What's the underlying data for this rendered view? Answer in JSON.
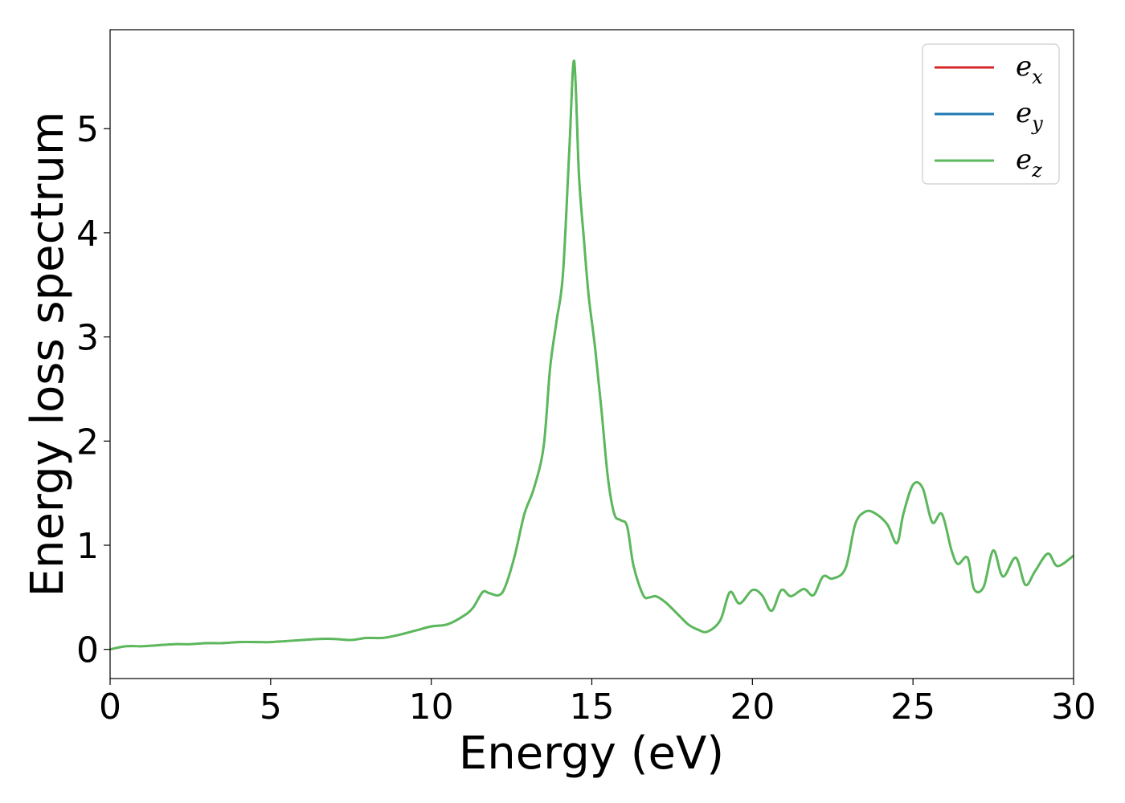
{
  "chart_data": {
    "type": "line",
    "title": "",
    "xlabel": "Energy (eV)",
    "ylabel": "Energy loss spectrum",
    "xlim": [
      0,
      30
    ],
    "ylim": [
      -0.28,
      5.95
    ],
    "xticks": [
      0,
      5,
      10,
      15,
      20,
      25,
      30
    ],
    "yticks": [
      0,
      1,
      2,
      3,
      4,
      5
    ],
    "grid": false,
    "legend_position": "top-right",
    "series": [
      {
        "name": "e_x",
        "legend_base": "e",
        "legend_sub": "x",
        "color": "#d62728",
        "x": [
          0,
          0.5,
          1,
          1.5,
          2,
          2.5,
          3,
          3.5,
          4,
          4.5,
          5,
          5.5,
          6,
          6.5,
          7,
          7.5,
          8,
          8.5,
          9,
          9.5,
          10,
          10.5,
          11,
          11.3,
          11.6,
          11.8,
          12.1,
          12.3,
          12.6,
          12.9,
          13.2,
          13.5,
          13.7,
          13.9,
          14.1,
          14.3,
          14.45,
          14.6,
          14.75,
          14.9,
          15.1,
          15.3,
          15.5,
          15.7,
          15.9,
          16.1,
          16.3,
          16.6,
          16.8,
          17.0,
          17.3,
          17.7,
          18.0,
          18.3,
          18.6,
          19.0,
          19.3,
          19.6,
          20.0,
          20.3,
          20.6,
          20.9,
          21.2,
          21.6,
          21.9,
          22.2,
          22.5,
          22.9,
          23.2,
          23.5,
          23.8,
          24.2,
          24.5,
          24.7,
          25.0,
          25.3,
          25.6,
          25.9,
          26.2,
          26.4,
          26.7,
          26.9,
          27.2,
          27.5,
          27.8,
          28.2,
          28.5,
          28.8,
          29.2,
          29.5,
          30.0
        ],
        "values": [
          0,
          0.03,
          0.03,
          0.04,
          0.05,
          0.05,
          0.06,
          0.06,
          0.07,
          0.07,
          0.07,
          0.08,
          0.09,
          0.1,
          0.1,
          0.09,
          0.11,
          0.11,
          0.14,
          0.18,
          0.22,
          0.24,
          0.32,
          0.4,
          0.55,
          0.54,
          0.52,
          0.6,
          0.9,
          1.3,
          1.55,
          1.95,
          2.7,
          3.15,
          3.6,
          4.8,
          5.65,
          4.55,
          3.95,
          3.4,
          2.9,
          2.3,
          1.65,
          1.3,
          1.24,
          1.18,
          0.8,
          0.52,
          0.5,
          0.51,
          0.45,
          0.33,
          0.24,
          0.19,
          0.17,
          0.28,
          0.55,
          0.44,
          0.57,
          0.52,
          0.37,
          0.57,
          0.51,
          0.58,
          0.52,
          0.7,
          0.68,
          0.78,
          1.2,
          1.32,
          1.31,
          1.2,
          1.02,
          1.3,
          1.58,
          1.55,
          1.22,
          1.3,
          0.95,
          0.82,
          0.88,
          0.58,
          0.6,
          0.95,
          0.7,
          0.88,
          0.62,
          0.75,
          0.92,
          0.8,
          0.9
        ],
        "width": 2.5
      },
      {
        "name": "e_y",
        "legend_base": "e",
        "legend_sub": "y",
        "color": "#1f77b4",
        "x": [
          0,
          0.5,
          1,
          1.5,
          2,
          2.5,
          3,
          3.5,
          4,
          4.5,
          5,
          5.5,
          6,
          6.5,
          7,
          7.5,
          8,
          8.5,
          9,
          9.5,
          10,
          10.5,
          11,
          11.3,
          11.6,
          11.8,
          12.1,
          12.3,
          12.6,
          12.9,
          13.2,
          13.5,
          13.7,
          13.9,
          14.1,
          14.3,
          14.45,
          14.6,
          14.75,
          14.9,
          15.1,
          15.3,
          15.5,
          15.7,
          15.9,
          16.1,
          16.3,
          16.6,
          16.8,
          17.0,
          17.3,
          17.7,
          18.0,
          18.3,
          18.6,
          19.0,
          19.3,
          19.6,
          20.0,
          20.3,
          20.6,
          20.9,
          21.2,
          21.6,
          21.9,
          22.2,
          22.5,
          22.9,
          23.2,
          23.5,
          23.8,
          24.2,
          24.5,
          24.7,
          25.0,
          25.3,
          25.6,
          25.9,
          26.2,
          26.4,
          26.7,
          26.9,
          27.2,
          27.5,
          27.8,
          28.2,
          28.5,
          28.8,
          29.2,
          29.5,
          30.0
        ],
        "values": [
          0,
          0.03,
          0.03,
          0.04,
          0.05,
          0.05,
          0.06,
          0.06,
          0.07,
          0.07,
          0.07,
          0.08,
          0.09,
          0.1,
          0.1,
          0.09,
          0.11,
          0.11,
          0.14,
          0.18,
          0.22,
          0.24,
          0.32,
          0.4,
          0.55,
          0.54,
          0.52,
          0.6,
          0.9,
          1.3,
          1.55,
          1.95,
          2.7,
          3.15,
          3.6,
          4.8,
          5.65,
          4.55,
          3.95,
          3.4,
          2.9,
          2.3,
          1.65,
          1.3,
          1.24,
          1.18,
          0.8,
          0.52,
          0.5,
          0.51,
          0.45,
          0.33,
          0.24,
          0.19,
          0.17,
          0.28,
          0.55,
          0.44,
          0.57,
          0.52,
          0.37,
          0.57,
          0.51,
          0.58,
          0.52,
          0.7,
          0.68,
          0.78,
          1.2,
          1.32,
          1.31,
          1.2,
          1.02,
          1.3,
          1.58,
          1.55,
          1.22,
          1.3,
          0.95,
          0.82,
          0.88,
          0.58,
          0.6,
          0.95,
          0.7,
          0.88,
          0.62,
          0.75,
          0.92,
          0.8,
          0.9
        ],
        "width": 2.5
      },
      {
        "name": "e_z",
        "legend_base": "e",
        "legend_sub": "z",
        "color": "#5cb85c",
        "x": [
          0,
          0.5,
          1,
          1.5,
          2,
          2.5,
          3,
          3.5,
          4,
          4.5,
          5,
          5.5,
          6,
          6.5,
          7,
          7.5,
          8,
          8.5,
          9,
          9.5,
          10,
          10.5,
          11,
          11.3,
          11.6,
          11.8,
          12.1,
          12.3,
          12.6,
          12.9,
          13.2,
          13.5,
          13.7,
          13.9,
          14.1,
          14.3,
          14.45,
          14.6,
          14.75,
          14.9,
          15.1,
          15.3,
          15.5,
          15.7,
          15.9,
          16.1,
          16.3,
          16.6,
          16.8,
          17.0,
          17.3,
          17.7,
          18.0,
          18.3,
          18.6,
          19.0,
          19.3,
          19.6,
          20.0,
          20.3,
          20.6,
          20.9,
          21.2,
          21.6,
          21.9,
          22.2,
          22.5,
          22.9,
          23.2,
          23.5,
          23.8,
          24.2,
          24.5,
          24.7,
          25.0,
          25.3,
          25.6,
          25.9,
          26.2,
          26.4,
          26.7,
          26.9,
          27.2,
          27.5,
          27.8,
          28.2,
          28.5,
          28.8,
          29.2,
          29.5,
          30.0
        ],
        "values": [
          0,
          0.03,
          0.03,
          0.04,
          0.05,
          0.05,
          0.06,
          0.06,
          0.07,
          0.07,
          0.07,
          0.08,
          0.09,
          0.1,
          0.1,
          0.09,
          0.11,
          0.11,
          0.14,
          0.18,
          0.22,
          0.24,
          0.32,
          0.4,
          0.55,
          0.54,
          0.52,
          0.6,
          0.9,
          1.3,
          1.55,
          1.95,
          2.7,
          3.15,
          3.6,
          4.8,
          5.65,
          4.55,
          3.95,
          3.4,
          2.9,
          2.3,
          1.65,
          1.3,
          1.24,
          1.18,
          0.8,
          0.52,
          0.5,
          0.51,
          0.45,
          0.33,
          0.24,
          0.19,
          0.17,
          0.28,
          0.55,
          0.44,
          0.57,
          0.52,
          0.37,
          0.57,
          0.51,
          0.58,
          0.52,
          0.7,
          0.68,
          0.78,
          1.2,
          1.32,
          1.31,
          1.2,
          1.02,
          1.3,
          1.58,
          1.55,
          1.22,
          1.3,
          0.95,
          0.82,
          0.88,
          0.58,
          0.6,
          0.95,
          0.7,
          0.88,
          0.62,
          0.75,
          0.92,
          0.8,
          0.9
        ],
        "width": 3
      }
    ]
  }
}
